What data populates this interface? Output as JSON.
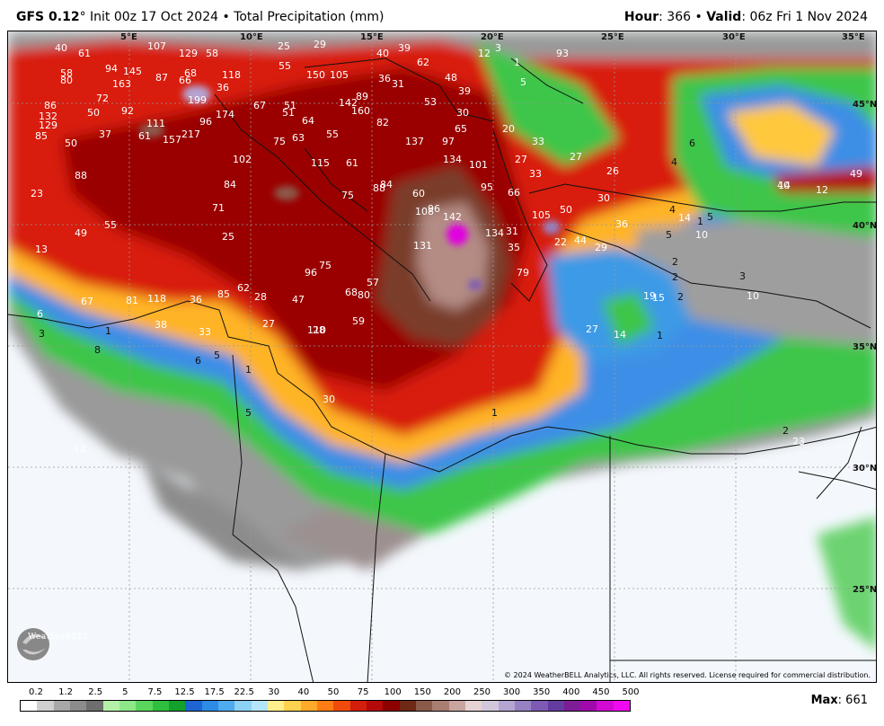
{
  "header": {
    "model": "GFS 0.12",
    "degree": "°",
    "init": "Init 00z 17 Oct 2024",
    "separator": "•",
    "product": "Total Precipitation (mm)",
    "hour_label": "Hour",
    "hour_value": ": 366",
    "valid_label": "Valid",
    "valid_value": ": 06z Fri 1 Nov 2024"
  },
  "map": {
    "lon_labels": [
      "5°E",
      "10°E",
      "15°E",
      "20°E",
      "25°E",
      "30°E",
      "35°E"
    ],
    "lat_labels": [
      "45°N",
      "40°N",
      "35°N",
      "30°N",
      "25°N"
    ],
    "copyright": "© 2024 WeatherBELL Analytics, LLC. All rights reserved. License required for commercial distribution.",
    "logo_text": "WeatherBELL",
    "values": [
      "40",
      "61",
      "107",
      "129",
      "58",
      "25",
      "29",
      "40",
      "39",
      "62",
      "12",
      "3",
      "1",
      "80",
      "58",
      "94",
      "145",
      "87",
      "66",
      "68",
      "118",
      "55",
      "150",
      "105",
      "36",
      "31",
      "48",
      "39",
      "5",
      "86",
      "72",
      "163",
      "199",
      "36",
      "67",
      "51",
      "142",
      "89",
      "53",
      "132",
      "50",
      "92",
      "111",
      "174",
      "51",
      "64",
      "160",
      "82",
      "30",
      "129",
      "85",
      "37",
      "61",
      "157",
      "217",
      "96",
      "75",
      "63",
      "55",
      "137",
      "97",
      "65",
      "20",
      "33",
      "50",
      "102",
      "115",
      "61",
      "134",
      "101",
      "27",
      "27",
      "23",
      "88",
      "84",
      "75",
      "88",
      "84",
      "60",
      "95",
      "66",
      "33",
      "26",
      "40",
      "71",
      "108",
      "96",
      "142",
      "134",
      "105",
      "50",
      "30",
      "36",
      "13",
      "49",
      "55",
      "25",
      "131",
      "31",
      "35",
      "22",
      "44",
      "29",
      "67",
      "81",
      "118",
      "36",
      "85",
      "62",
      "28",
      "96",
      "75",
      "68",
      "80",
      "57",
      "79",
      "6",
      "38",
      "33",
      "27",
      "47",
      "110",
      "59",
      "28",
      "30",
      "27",
      "14",
      "1",
      "3",
      "1",
      "8",
      "6",
      "5",
      "1",
      "5",
      "12",
      "1",
      "93",
      "49",
      "14",
      "12",
      "4",
      "6",
      "4",
      "14",
      "1",
      "5",
      "5",
      "10",
      "3",
      "10",
      "23",
      "19",
      "15",
      "2",
      "2",
      "2",
      "2",
      "2"
    ]
  },
  "scale": {
    "labels": [
      "0.2",
      "1.2",
      "2.5",
      "5",
      "7.5",
      "12.5",
      "17.5",
      "22.5",
      "30",
      "40",
      "50",
      "75",
      "100",
      "150",
      "200",
      "250",
      "300",
      "350",
      "400",
      "450",
      "500"
    ],
    "colors": [
      "#ffffff",
      "#cfcfcf",
      "#a8a8a8",
      "#8c8c8c",
      "#6e6e6e",
      "#b4f0a8",
      "#8ee88a",
      "#5ad65e",
      "#2fbf3e",
      "#14a02c",
      "#1e64d2",
      "#2d8ce6",
      "#50aaf0",
      "#8cd2f5",
      "#b4e6fa",
      "#fff08c",
      "#ffd250",
      "#ffaa28",
      "#ff7d14",
      "#f04b0a",
      "#d21e0a",
      "#b40a0a",
      "#8c0000",
      "#6e2814",
      "#8c5a4b",
      "#aa7d73",
      "#c8a5a0",
      "#e6d2d2",
      "#d2c8dc",
      "#b4a5d2",
      "#9682c3",
      "#7d5ab4",
      "#643ca0",
      "#7d1e96",
      "#a00aaa",
      "#d20ad2",
      "#f00af0"
    ]
  },
  "max": {
    "label": "Max",
    "value": ": 661"
  }
}
